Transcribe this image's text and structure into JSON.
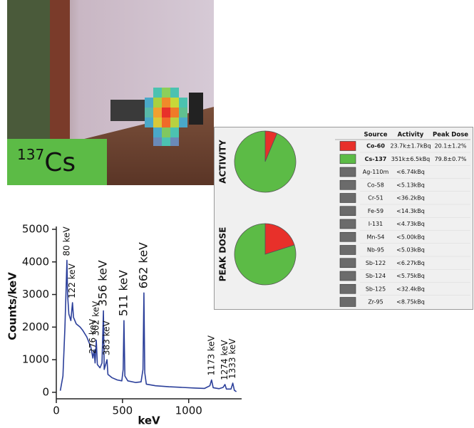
{
  "chart_data": [
    {
      "type": "line",
      "xlabel": "keV",
      "ylabel": "Counts/keV",
      "x": [
        30,
        50,
        65,
        75,
        80,
        85,
        95,
        110,
        122,
        130,
        150,
        180,
        200,
        230,
        260,
        276,
        285,
        293,
        302,
        310,
        330,
        345,
        356,
        362,
        383,
        390,
        420,
        460,
        495,
        505,
        511,
        518,
        540,
        600,
        640,
        655,
        662,
        668,
        680,
        750,
        850,
        950,
        1050,
        1120,
        1160,
        1173,
        1185,
        1230,
        1260,
        1274,
        1285,
        1320,
        1333,
        1345,
        1360
      ],
      "series": [
        {
          "color": "#2b3f9a",
          "values": [
            50,
            500,
            2000,
            3300,
            4050,
            3000,
            2400,
            2200,
            2750,
            2300,
            2100,
            2000,
            1900,
            1700,
            1400,
            1050,
            1300,
            900,
            1600,
            850,
            750,
            900,
            2500,
            700,
            1000,
            550,
            450,
            380,
            350,
            700,
            2200,
            500,
            350,
            300,
            320,
            700,
            3050,
            600,
            250,
            200,
            170,
            150,
            130,
            120,
            200,
            380,
            140,
            110,
            150,
            240,
            100,
            100,
            280,
            60,
            20
          ]
        }
      ],
      "xlim": [
        0,
        1400
      ],
      "ylim": [
        -200,
        5000
      ],
      "xticks": [
        0,
        500,
        1000
      ],
      "yticks": [
        0,
        1000,
        2000,
        3000,
        4000,
        5000
      ],
      "annotations": [
        {
          "text": "80 keV",
          "x": 80
        },
        {
          "text": "122 keV",
          "x": 122
        },
        {
          "text": "276 keV",
          "x": 276
        },
        {
          "text": "302 keV",
          "x": 302
        },
        {
          "text": "356 keV",
          "x": 356
        },
        {
          "text": "383 keV",
          "x": 383
        },
        {
          "text": "511 keV",
          "x": 511
        },
        {
          "text": "662 keV",
          "x": 662
        },
        {
          "text": "1173 keV",
          "x": 1173
        },
        {
          "text": "1274 keV",
          "x": 1274
        },
        {
          "text": "1333 keV",
          "x": 1333
        }
      ]
    },
    {
      "type": "pie",
      "title": "ACTIVITY",
      "values": [
        23.7,
        351
      ],
      "colors": [
        "#e8302a",
        "#5cbb46"
      ]
    },
    {
      "type": "pie",
      "title": "PEAK DOSE",
      "values": [
        20.1,
        79.8
      ],
      "colors": [
        "#e8302a",
        "#5cbb46"
      ]
    }
  ],
  "photo": {
    "isotope_mass": "137",
    "isotope_symbol": "Cs"
  },
  "table": {
    "columns": [
      "Source",
      "Activity",
      "Peak Dose"
    ],
    "rows": [
      [
        "Co-60",
        "23.7k±1.7kBq",
        "20.1±1.2%"
      ],
      [
        "Cs-137",
        "351k±6.5kBq",
        "79.8±0.7%"
      ],
      [
        "Ag-110m",
        "<6.74kBq"
      ],
      [
        "Co-58",
        "<5.13kBq"
      ],
      [
        "Cr-51",
        "<36.2kBq"
      ],
      [
        "Fe-59",
        "<14.3kBq"
      ],
      [
        "I-131",
        "<4.73kBq"
      ],
      [
        "Mn-54",
        "<5.00kBq"
      ],
      [
        "Nb-95",
        "<5.03kBq"
      ],
      [
        "Sb-122",
        "<6.27kBq"
      ],
      [
        "Sb-124",
        "<5.75kBq"
      ],
      [
        "Sb-125",
        "<32.4kBq"
      ],
      [
        "Zr-95",
        "<8.75kBq"
      ]
    ],
    "swatches": [
      "#e8302a",
      "#5cbb46",
      "#6b6b6b",
      "#6b6b6b",
      "#6b6b6b",
      "#6b6b6b",
      "#6b6b6b",
      "#6b6b6b",
      "#6b6b6b",
      "#6b6b6b",
      "#6b6b6b",
      "#6b6b6b",
      "#6b6b6b"
    ]
  }
}
